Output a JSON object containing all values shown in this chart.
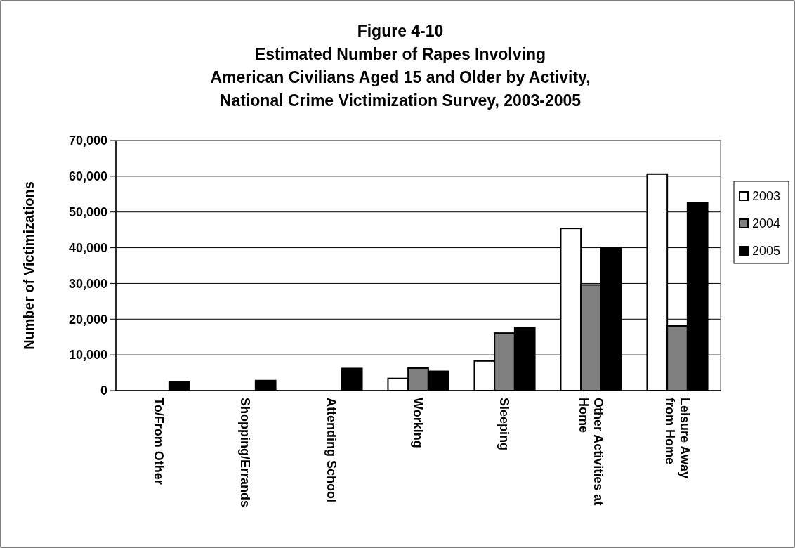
{
  "chart_data": {
    "type": "bar",
    "title": "Figure 4-10\nEstimated Number of Rapes Involving\nAmerican Civilians Aged 15 and Older by Activity,\nNational Crime Victimization Survey, 2003-2005",
    "ylabel": "Number of Victimizations",
    "categories": [
      "To/From Other",
      "Shopping/Errands",
      "Attending School",
      "Working",
      "Sleeping",
      "Other Activities at\nHome",
      "Leisure Away\nfrom Home"
    ],
    "series": [
      {
        "name": "2003",
        "color": "#ffffff",
        "values": [
          0,
          0,
          0,
          3400,
          8300,
          45400,
          60600
        ]
      },
      {
        "name": "2004",
        "color": "#808080",
        "values": [
          0,
          0,
          0,
          6300,
          16100,
          29600,
          18100
        ]
      },
      {
        "name": "2005",
        "color": "#000000",
        "values": [
          2400,
          2800,
          6200,
          5400,
          17700,
          40000,
          52500
        ]
      }
    ],
    "ylim": [
      0,
      70000
    ],
    "yticks": [
      {
        "value": 0,
        "label": "0"
      },
      {
        "value": 10000,
        "label": "10,000"
      },
      {
        "value": 20000,
        "label": "20,000"
      },
      {
        "value": 30000,
        "label": "30,000"
      },
      {
        "value": 40000,
        "label": "40,000"
      },
      {
        "value": 50000,
        "label": "50,000"
      },
      {
        "value": 60000,
        "label": "60,000"
      },
      {
        "value": 70000,
        "label": "70,000"
      }
    ],
    "grid": "y",
    "legend": "right"
  }
}
